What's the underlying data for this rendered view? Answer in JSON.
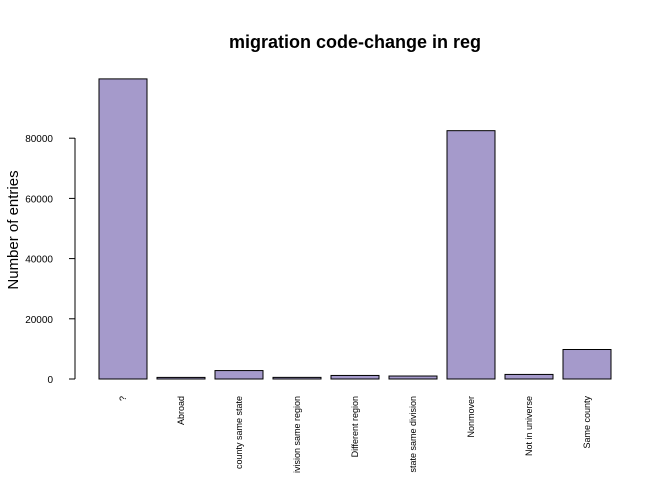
{
  "chart_data": {
    "type": "bar",
    "title": "migration code-change in reg",
    "y_label": "Number of entries",
    "categories": [
      "?",
      "Abroad",
      "county same state",
      "ivision same region",
      "Different region",
      "state same division",
      "Nonmover",
      "Not in universe",
      "Same county"
    ],
    "values": [
      99700,
      530,
      2800,
      540,
      1180,
      990,
      82500,
      1520,
      9800
    ],
    "color": "#a59acb",
    "ylim": [
      0,
      100000
    ],
    "yticks": [
      0,
      20000,
      40000,
      60000,
      80000
    ],
    "grid": false
  }
}
